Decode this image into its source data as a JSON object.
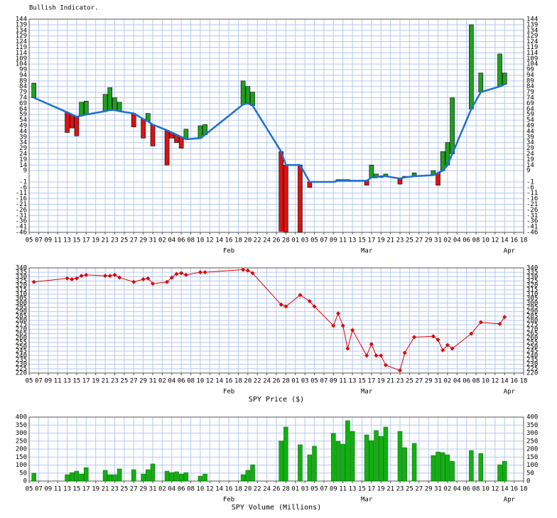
{
  "chart_data": [
    {
      "type": "indicator",
      "title": "Bullish Indicator.",
      "x": [
        6,
        13,
        14,
        15,
        16,
        17,
        21,
        22,
        23,
        24,
        27,
        29,
        30,
        31,
        34,
        35,
        36,
        37,
        38,
        41,
        42,
        50,
        51,
        52,
        58,
        59,
        62,
        64,
        65,
        69,
        70,
        71,
        72,
        73,
        76,
        77,
        78,
        79,
        80,
        83,
        84,
        86,
        90,
        91,
        92,
        93,
        94,
        98,
        100,
        104,
        105
      ],
      "bar_values": [
        87,
        43,
        47,
        40,
        70,
        71,
        77,
        83,
        74,
        70,
        48,
        38,
        60,
        31,
        14,
        38,
        34,
        29,
        46,
        49,
        50,
        89,
        84,
        79,
        -45,
        -46,
        -46,
        -6,
        -1,
        -1,
        1,
        1,
        1,
        0,
        -4,
        14,
        6,
        3,
        6,
        -3,
        4,
        7,
        9,
        -4,
        26,
        34,
        74,
        139,
        96,
        113,
        96
      ],
      "line_values": [
        74,
        61,
        59,
        57,
        58,
        59,
        62,
        63,
        63,
        62,
        60,
        55,
        53,
        50,
        45,
        43,
        41,
        39,
        37,
        38,
        41,
        68,
        69,
        67,
        26,
        14,
        14,
        -1,
        -1,
        -1,
        0,
        0,
        0,
        0,
        0,
        3,
        3,
        4,
        4,
        2,
        3,
        4,
        5,
        7,
        9,
        14,
        24,
        64,
        79,
        84,
        86
      ],
      "up_color": "#1fa01f",
      "down_color": "#dd1111",
      "line_color": "#1f6fd0",
      "xlim": [
        5,
        109
      ],
      "xticks": [
        {
          "value": 5,
          "label": "05"
        },
        {
          "value": 7,
          "label": "07"
        },
        {
          "value": 9,
          "label": "09"
        },
        11,
        13,
        15,
        17,
        19,
        21,
        23,
        25,
        27,
        29,
        31,
        {
          "value": 33,
          "label": "02"
        },
        {
          "value": 35,
          "label": "04"
        },
        {
          "value": 37,
          "label": "06"
        },
        {
          "value": 39,
          "label": "08"
        },
        {
          "value": 41,
          "label": "10"
        },
        {
          "value": 43,
          "label": "12"
        },
        {
          "value": 45,
          "label": "14"
        },
        {
          "value": 47,
          "label": "16"
        },
        {
          "value": 49,
          "label": "18"
        },
        {
          "value": 51,
          "label": "20"
        },
        {
          "value": 53,
          "label": "22"
        },
        {
          "value": 55,
          "label": "24"
        },
        {
          "value": 57,
          "label": "26"
        },
        {
          "value": 59,
          "label": "28"
        },
        {
          "value": 61,
          "label": "01"
        },
        {
          "value": 63,
          "label": "03"
        },
        {
          "value": 65,
          "label": "05"
        },
        {
          "value": 67,
          "label": "07"
        },
        {
          "value": 69,
          "label": "09"
        },
        {
          "value": 71,
          "label": "11"
        },
        {
          "value": 73,
          "label": "13"
        },
        {
          "value": 75,
          "label": "15"
        },
        {
          "value": 77,
          "label": "17"
        },
        {
          "value": 79,
          "label": "19"
        },
        {
          "value": 81,
          "label": "21"
        },
        {
          "value": 83,
          "label": "23"
        },
        {
          "value": 85,
          "label": "25"
        },
        {
          "value": 87,
          "label": "27"
        },
        {
          "value": 89,
          "label": "29"
        },
        {
          "value": 91,
          "label": "31"
        },
        {
          "value": 93,
          "label": "02"
        },
        {
          "value": 95,
          "label": "04"
        },
        {
          "value": 97,
          "label": "06"
        },
        {
          "value": 99,
          "label": "08"
        },
        {
          "value": 101,
          "label": "10"
        },
        {
          "value": 103,
          "label": "12"
        },
        {
          "value": 105,
          "label": "14"
        },
        {
          "value": 107,
          "label": "16"
        },
        {
          "value": 109,
          "label": "18"
        }
      ],
      "month_ticks": [
        {
          "value": 47,
          "label": "Feb"
        },
        {
          "value": 76,
          "label": "Mar"
        },
        {
          "value": 106,
          "label": "Apr"
        }
      ],
      "ylim": [
        -46,
        144
      ],
      "yticks": [
        144,
        139,
        134,
        129,
        124,
        119,
        114,
        109,
        104,
        99,
        94,
        89,
        84,
        79,
        74,
        69,
        64,
        59,
        54,
        49,
        44,
        39,
        34,
        29,
        24,
        19,
        14,
        9,
        -1,
        -6,
        -11,
        -16,
        -21,
        -26,
        -31,
        -36,
        -41,
        -46
      ],
      "grid": true
    },
    {
      "type": "line",
      "title": "SPY Price ($)",
      "x": [
        6,
        13,
        14,
        15,
        16,
        17,
        21,
        22,
        23,
        24,
        27,
        29,
        30,
        31,
        34,
        35,
        36,
        37,
        38,
        41,
        42,
        50,
        51,
        52,
        58,
        59,
        62,
        64,
        65,
        69,
        70,
        71,
        72,
        73,
        76,
        77,
        78,
        79,
        80,
        83,
        84,
        86,
        90,
        91,
        92,
        93,
        94,
        98,
        100,
        104,
        105
      ],
      "values": [
        324,
        328,
        327,
        328,
        331,
        332,
        331,
        331,
        332,
        329,
        324,
        327,
        328,
        322,
        324,
        329,
        333,
        334,
        332,
        335,
        335,
        338,
        337,
        334,
        298,
        296,
        309,
        302,
        296,
        274,
        288,
        274,
        248,
        269,
        240,
        253,
        240,
        240,
        229,
        223,
        243,
        261,
        262,
        258,
        246,
        252,
        248,
        265,
        278,
        276,
        284
      ],
      "color": "#e00000",
      "xlim": [
        5,
        109
      ],
      "xticks": [
        {
          "value": 5,
          "label": "05"
        },
        {
          "value": 7,
          "label": "07"
        },
        {
          "value": 9,
          "label": "09"
        },
        11,
        13,
        15,
        17,
        19,
        21,
        23,
        25,
        27,
        29,
        31,
        {
          "value": 33,
          "label": "02"
        },
        {
          "value": 35,
          "label": "04"
        },
        {
          "value": 37,
          "label": "06"
        },
        {
          "value": 39,
          "label": "08"
        },
        {
          "value": 41,
          "label": "10"
        },
        {
          "value": 43,
          "label": "12"
        },
        {
          "value": 45,
          "label": "14"
        },
        {
          "value": 47,
          "label": "16"
        },
        {
          "value": 49,
          "label": "18"
        },
        {
          "value": 51,
          "label": "20"
        },
        {
          "value": 53,
          "label": "22"
        },
        {
          "value": 55,
          "label": "24"
        },
        {
          "value": 57,
          "label": "26"
        },
        {
          "value": 59,
          "label": "28"
        },
        {
          "value": 61,
          "label": "01"
        },
        {
          "value": 63,
          "label": "03"
        },
        {
          "value": 65,
          "label": "05"
        },
        {
          "value": 67,
          "label": "07"
        },
        {
          "value": 69,
          "label": "09"
        },
        {
          "value": 71,
          "label": "11"
        },
        {
          "value": 73,
          "label": "13"
        },
        {
          "value": 75,
          "label": "15"
        },
        {
          "value": 77,
          "label": "17"
        },
        {
          "value": 79,
          "label": "19"
        },
        {
          "value": 81,
          "label": "21"
        },
        {
          "value": 83,
          "label": "23"
        },
        {
          "value": 85,
          "label": "25"
        },
        {
          "value": 87,
          "label": "27"
        },
        {
          "value": 89,
          "label": "29"
        },
        {
          "value": 91,
          "label": "31"
        },
        {
          "value": 93,
          "label": "02"
        },
        {
          "value": 95,
          "label": "04"
        },
        {
          "value": 97,
          "label": "06"
        },
        {
          "value": 99,
          "label": "08"
        },
        {
          "value": 101,
          "label": "10"
        },
        {
          "value": 103,
          "label": "12"
        },
        {
          "value": 105,
          "label": "14"
        },
        {
          "value": 107,
          "label": "16"
        },
        {
          "value": 109,
          "label": "18"
        }
      ],
      "month_ticks": [
        {
          "value": 47,
          "label": "Feb"
        },
        {
          "value": 76,
          "label": "Mar"
        },
        {
          "value": 106,
          "label": "Apr"
        }
      ],
      "ylim": [
        220,
        340
      ],
      "yticks": [
        340,
        335,
        330,
        325,
        320,
        315,
        310,
        305,
        300,
        295,
        290,
        285,
        280,
        275,
        270,
        265,
        260,
        255,
        250,
        245,
        240,
        235,
        230,
        225,
        220
      ],
      "grid": true
    },
    {
      "type": "bar",
      "title": "SPY Volume (Millions)",
      "x": [
        6,
        13,
        14,
        15,
        16,
        17,
        21,
        22,
        23,
        24,
        27,
        29,
        30,
        31,
        34,
        35,
        36,
        37,
        38,
        41,
        42,
        50,
        51,
        52,
        58,
        59,
        62,
        64,
        65,
        69,
        70,
        71,
        72,
        73,
        76,
        77,
        78,
        79,
        80,
        83,
        84,
        86,
        90,
        91,
        92,
        93,
        94,
        98,
        100,
        104,
        105
      ],
      "values": [
        49,
        40,
        53,
        62,
        44,
        84,
        67,
        40,
        40,
        76,
        71,
        44,
        71,
        107,
        62,
        53,
        58,
        44,
        53,
        31,
        44,
        40,
        67,
        102,
        251,
        338,
        227,
        164,
        218,
        298,
        249,
        231,
        378,
        311,
        289,
        253,
        316,
        280,
        338,
        311,
        209,
        236,
        160,
        182,
        178,
        164,
        124,
        191,
        173,
        102,
        124
      ],
      "color": "#10b010",
      "xlim": [
        5,
        109
      ],
      "xticks": [
        {
          "value": 5,
          "label": "05"
        },
        {
          "value": 7,
          "label": "07"
        },
        {
          "value": 9,
          "label": "09"
        },
        11,
        13,
        15,
        17,
        19,
        21,
        23,
        25,
        27,
        29,
        31,
        {
          "value": 33,
          "label": "02"
        },
        {
          "value": 35,
          "label": "04"
        },
        {
          "value": 37,
          "label": "06"
        },
        {
          "value": 39,
          "label": "08"
        },
        {
          "value": 41,
          "label": "10"
        },
        {
          "value": 43,
          "label": "12"
        },
        {
          "value": 45,
          "label": "14"
        },
        {
          "value": 47,
          "label": "16"
        },
        {
          "value": 49,
          "label": "18"
        },
        {
          "value": 51,
          "label": "20"
        },
        {
          "value": 53,
          "label": "22"
        },
        {
          "value": 55,
          "label": "24"
        },
        {
          "value": 57,
          "label": "26"
        },
        {
          "value": 59,
          "label": "28"
        },
        {
          "value": 61,
          "label": "01"
        },
        {
          "value": 63,
          "label": "03"
        },
        {
          "value": 65,
          "label": "05"
        },
        {
          "value": 67,
          "label": "07"
        },
        {
          "value": 69,
          "label": "09"
        },
        {
          "value": 71,
          "label": "11"
        },
        {
          "value": 73,
          "label": "13"
        },
        {
          "value": 75,
          "label": "15"
        },
        {
          "value": 77,
          "label": "17"
        },
        {
          "value": 79,
          "label": "19"
        },
        {
          "value": 81,
          "label": "21"
        },
        {
          "value": 83,
          "label": "23"
        },
        {
          "value": 85,
          "label": "25"
        },
        {
          "value": 87,
          "label": "27"
        },
        {
          "value": 89,
          "label": "29"
        },
        {
          "value": 91,
          "label": "31"
        },
        {
          "value": 93,
          "label": "02"
        },
        {
          "value": 95,
          "label": "04"
        },
        {
          "value": 97,
          "label": "06"
        },
        {
          "value": 99,
          "label": "08"
        },
        {
          "value": 101,
          "label": "10"
        },
        {
          "value": 103,
          "label": "12"
        },
        {
          "value": 105,
          "label": "14"
        },
        {
          "value": 107,
          "label": "16"
        },
        {
          "value": 109,
          "label": "18"
        }
      ],
      "month_ticks": [
        {
          "value": 47,
          "label": "Feb"
        },
        {
          "value": 76,
          "label": "Mar"
        },
        {
          "value": 106,
          "label": "Apr"
        }
      ],
      "ylim": [
        0,
        400
      ],
      "yticks": [
        400,
        350,
        300,
        250,
        200,
        150,
        100,
        50,
        0
      ],
      "grid": true
    }
  ]
}
